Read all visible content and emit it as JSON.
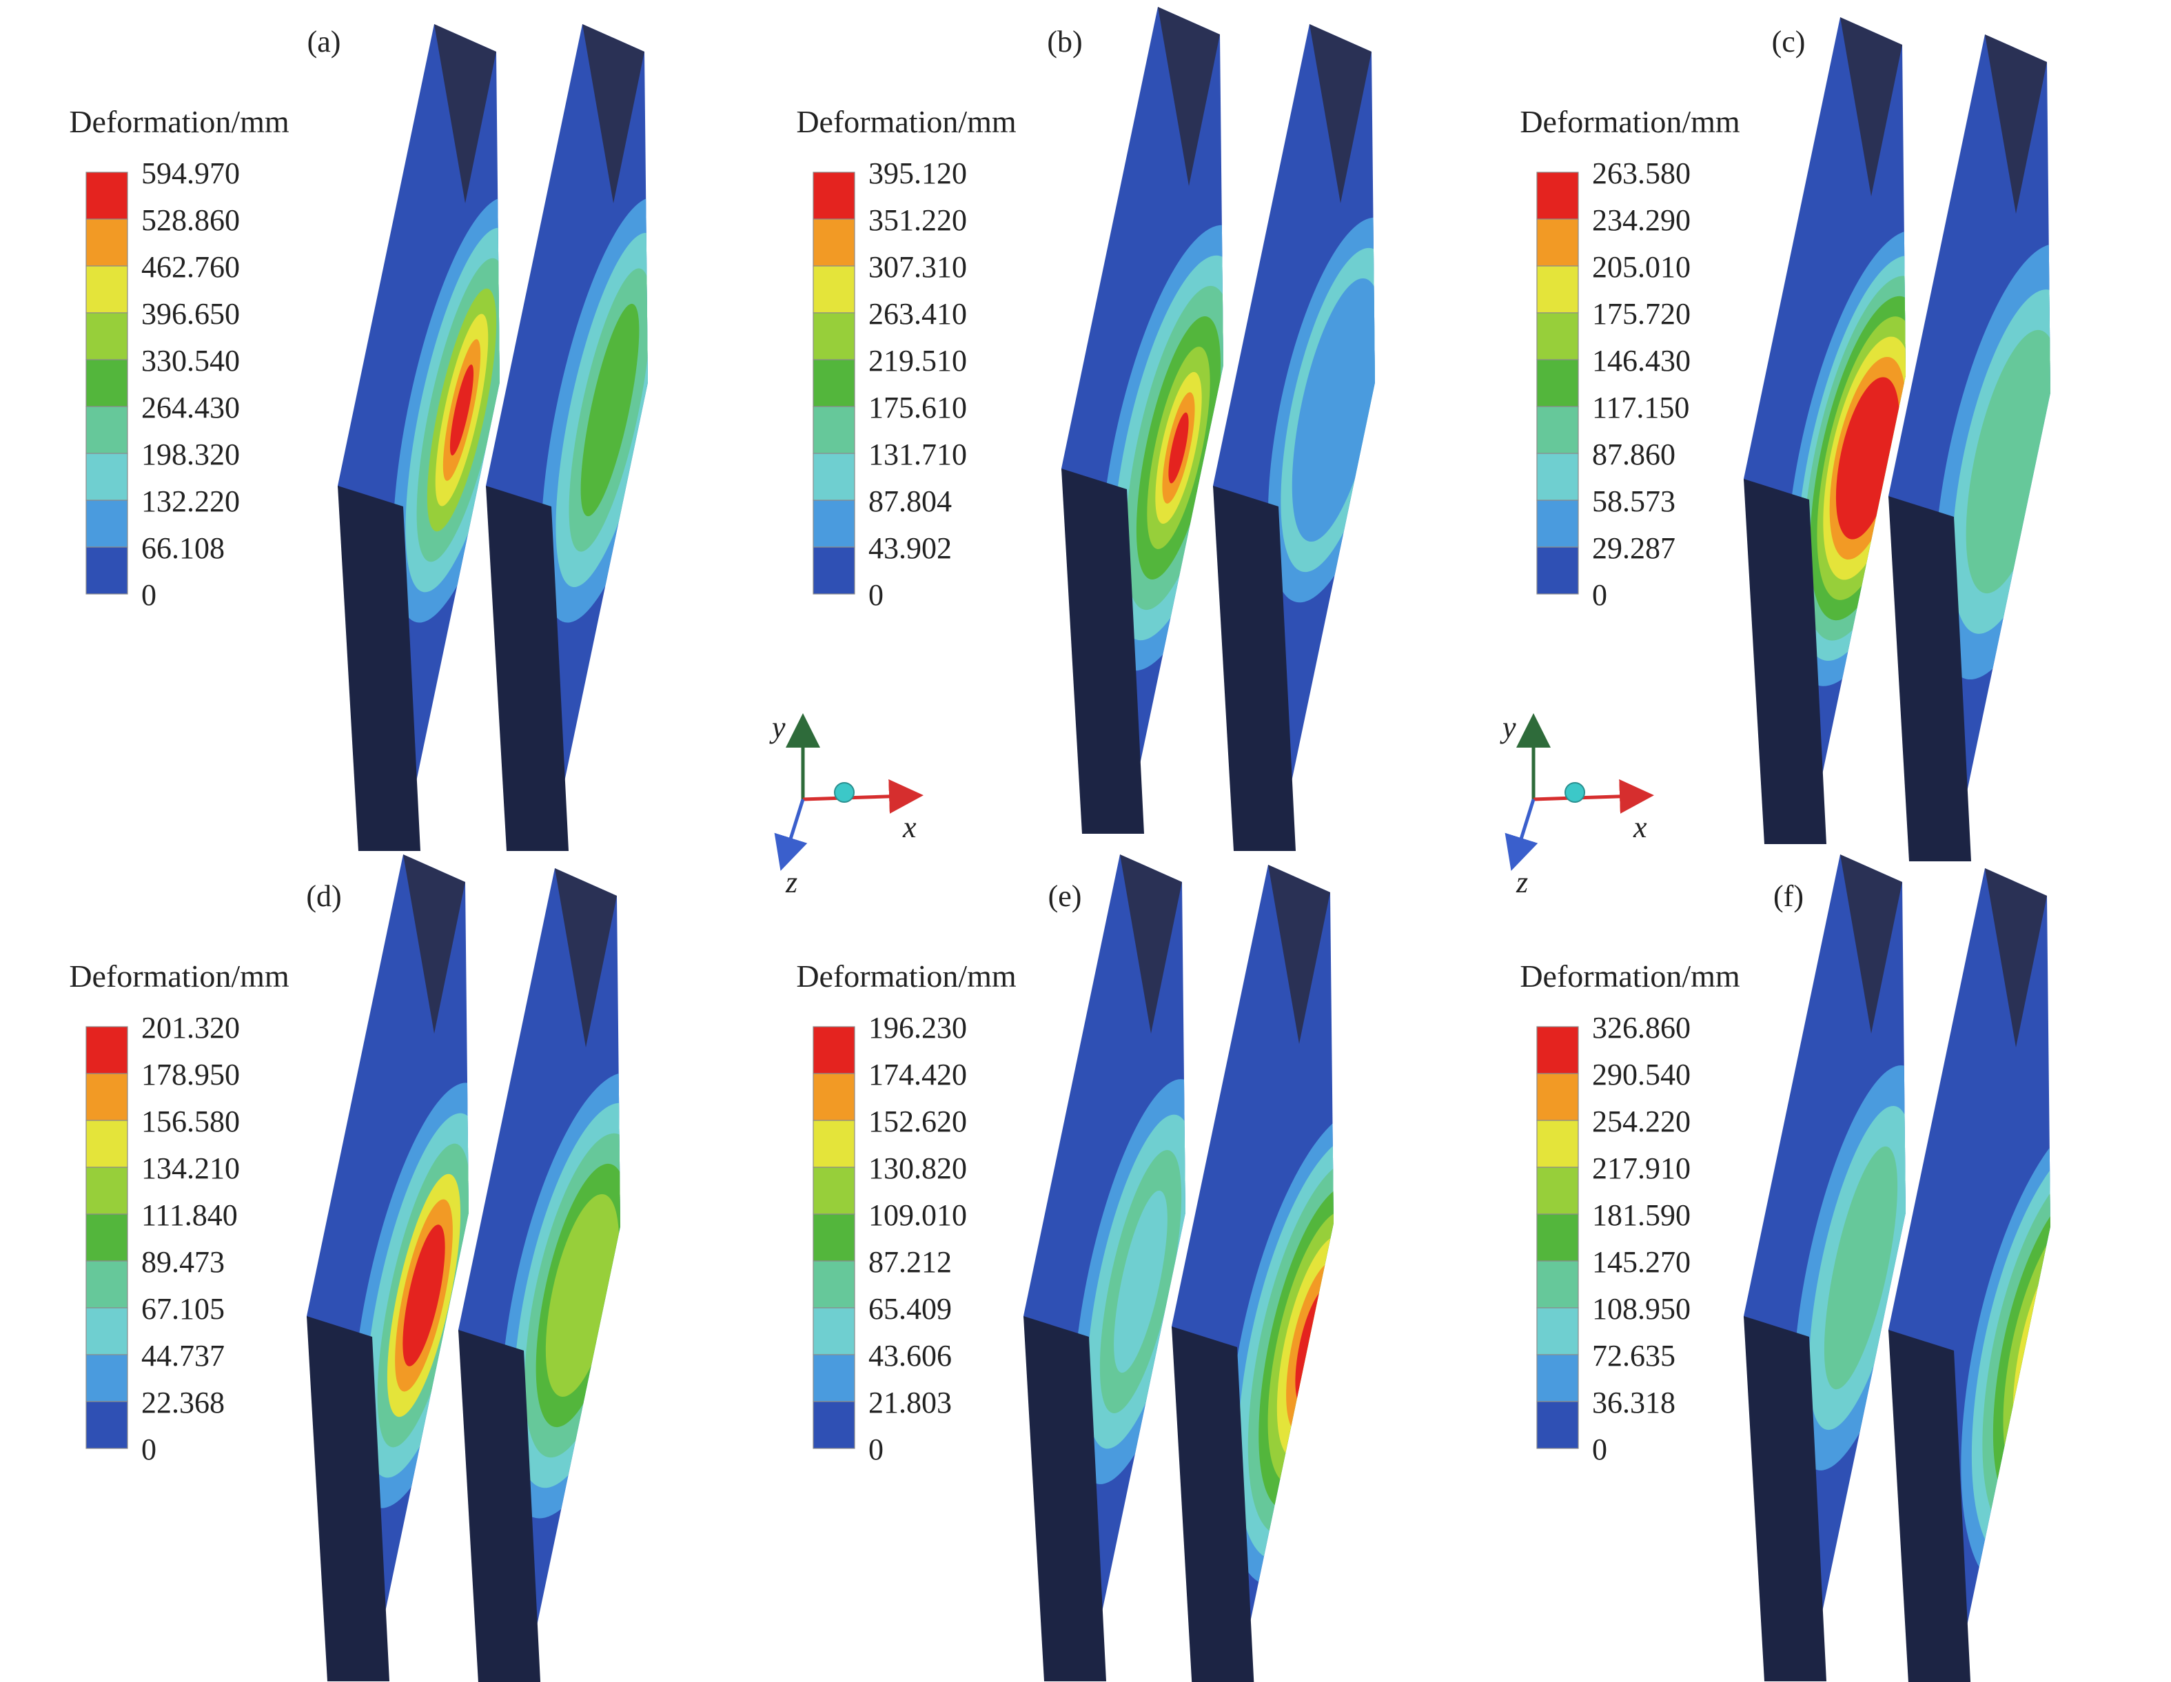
{
  "colors": {
    "base": "#2f50b4",
    "dark_side": "#1c2444",
    "dark_top": "#2a3155",
    "levels": [
      "#2f50b4",
      "#4a9bde",
      "#6fcfd0",
      "#66c89a",
      "#53b63c",
      "#97cf3a",
      "#e4e43a",
      "#f29a25",
      "#e4231f"
    ]
  },
  "axis_triads": [
    {
      "labels": {
        "x": "x",
        "y": "y",
        "z": "z"
      }
    },
    {
      "labels": {
        "x": "x",
        "y": "y",
        "z": "z"
      }
    }
  ],
  "panels": [
    {
      "label": "(a)",
      "legend_title": "Deformation/mm",
      "ticks": [
        "594.970",
        "528.860",
        "462.760",
        "396.650",
        "330.540",
        "264.430",
        "198.320",
        "132.220",
        "66.108",
        "0"
      ]
    },
    {
      "label": "(b)",
      "legend_title": "Deformation/mm",
      "ticks": [
        "395.120",
        "351.220",
        "307.310",
        "263.410",
        "219.510",
        "175.610",
        "131.710",
        "87.804",
        "43.902",
        "0"
      ]
    },
    {
      "label": "(c)",
      "legend_title": "Deformation/mm",
      "ticks": [
        "263.580",
        "234.290",
        "205.010",
        "175.720",
        "146.430",
        "117.150",
        "87.860",
        "58.573",
        "29.287",
        "0"
      ]
    },
    {
      "label": "(d)",
      "legend_title": "Deformation/mm",
      "ticks": [
        "201.320",
        "178.950",
        "156.580",
        "134.210",
        "111.840",
        "89.473",
        "67.105",
        "44.737",
        "22.368",
        "0"
      ]
    },
    {
      "label": "(e)",
      "legend_title": "Deformation/mm",
      "ticks": [
        "196.230",
        "174.420",
        "152.620",
        "130.820",
        "109.010",
        "87.212",
        "65.409",
        "43.606",
        "21.803",
        "0"
      ]
    },
    {
      "label": "(f)",
      "legend_title": "Deformation/mm",
      "ticks": [
        "326.860",
        "290.540",
        "254.220",
        "217.910",
        "181.590",
        "145.270",
        "108.950",
        "72.635",
        "36.318",
        "0"
      ]
    }
  ]
}
